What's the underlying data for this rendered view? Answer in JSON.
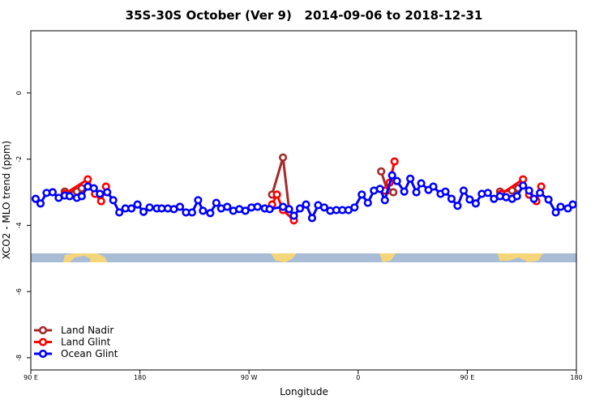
{
  "chart_data": {
    "type": "line",
    "title": "35S-30S October (Ver 9)   2014-09-06 to 2018-12-31",
    "x_label": "Longitude",
    "y_label": "XCO2 - MLO trend (ppm)",
    "xlim": [
      90,
      540
    ],
    "ylim": [
      -8.37,
      1.88
    ],
    "xticks": [
      {
        "value": 90,
        "label": "90 E"
      },
      180,
      {
        "value": 270,
        "label": "90 W"
      },
      {
        "value": 360,
        "label": "0"
      },
      {
        "value": 450,
        "label": "90 E"
      },
      {
        "value": 540,
        "label": "180"
      }
    ],
    "yticks": [
      0,
      -2,
      -4,
      -6,
      -8
    ],
    "legend": "bottom-left",
    "series": [
      {
        "name": "Land Nadir",
        "color": "#a52a2a",
        "x": [
          118,
          128,
          132,
          null,
          289,
          298,
          303,
          null,
          379,
          384,
          389,
          null,
          477,
          487,
          492
        ],
        "values": [
          -2.98,
          -2.98,
          -2.88,
          null,
          -3.07,
          -1.95,
          -3.51,
          null,
          -2.37,
          -2.95,
          -3.0,
          null,
          -2.98,
          -2.95,
          -2.88
        ]
      },
      {
        "name": "Land Glint",
        "color": "#ff0000",
        "x": [
          118,
          137,
          143,
          148,
          152,
          null,
          289,
          293,
          298,
          307,
          null,
          382,
          386,
          390,
          null,
          478,
          496,
          501,
          507,
          511
        ],
        "values": [
          -3.05,
          -2.61,
          -3.05,
          -3.27,
          -2.83,
          null,
          -3.37,
          -3.07,
          -3.54,
          -3.85,
          null,
          -2.95,
          -2.71,
          -2.07,
          null,
          -3.05,
          -2.61,
          -3.07,
          -3.27,
          -2.83
        ]
      },
      {
        "name": "Ocean Glint",
        "color": "#0000ff",
        "x": [
          94,
          98,
          103,
          108,
          113,
          118,
          122,
          128,
          132,
          137,
          142,
          147,
          153,
          158,
          163,
          168,
          173,
          178,
          183,
          188,
          194,
          198,
          203,
          208,
          213,
          218,
          223,
          228,
          232,
          238,
          243,
          247,
          252,
          257,
          262,
          267,
          272,
          277,
          283,
          287,
          298,
          303,
          307,
          312,
          317,
          322,
          327,
          332,
          337,
          342,
          347,
          352,
          357,
          363,
          368,
          373,
          378,
          382,
          388,
          392,
          398,
          403,
          408,
          412,
          418,
          422,
          428,
          432,
          437,
          442,
          447,
          452,
          457,
          462,
          467,
          472,
          477,
          482,
          487,
          491,
          496,
          501,
          505,
          510,
          517,
          523,
          527,
          533,
          537
        ],
        "values": [
          -3.2,
          -3.34,
          -3.02,
          -3.0,
          -3.17,
          -3.1,
          -3.12,
          -3.17,
          -3.12,
          -2.83,
          -2.88,
          -3.05,
          -3.0,
          -3.24,
          -3.61,
          -3.49,
          -3.49,
          -3.37,
          -3.59,
          -3.46,
          -3.49,
          -3.49,
          -3.49,
          -3.51,
          -3.44,
          -3.61,
          -3.61,
          -3.24,
          -3.56,
          -3.63,
          -3.32,
          -3.49,
          -3.44,
          -3.56,
          -3.51,
          -3.56,
          -3.46,
          -3.44,
          -3.49,
          -3.51,
          -3.44,
          -3.51,
          -3.71,
          -3.49,
          -3.37,
          -3.78,
          -3.39,
          -3.46,
          -3.56,
          -3.54,
          -3.54,
          -3.54,
          -3.46,
          -3.07,
          -3.32,
          -2.95,
          -2.9,
          -3.24,
          -2.49,
          -2.66,
          -2.98,
          -2.59,
          -3.0,
          -2.73,
          -2.93,
          -2.83,
          -3.05,
          -2.98,
          -3.2,
          -3.41,
          -2.95,
          -3.22,
          -3.34,
          -3.05,
          -3.02,
          -3.2,
          -3.12,
          -3.15,
          -3.2,
          -3.12,
          -2.8,
          -2.95,
          -3.2,
          -3.02,
          -3.22,
          -3.61,
          -3.44,
          -3.49,
          -3.37
        ]
      }
    ]
  }
}
